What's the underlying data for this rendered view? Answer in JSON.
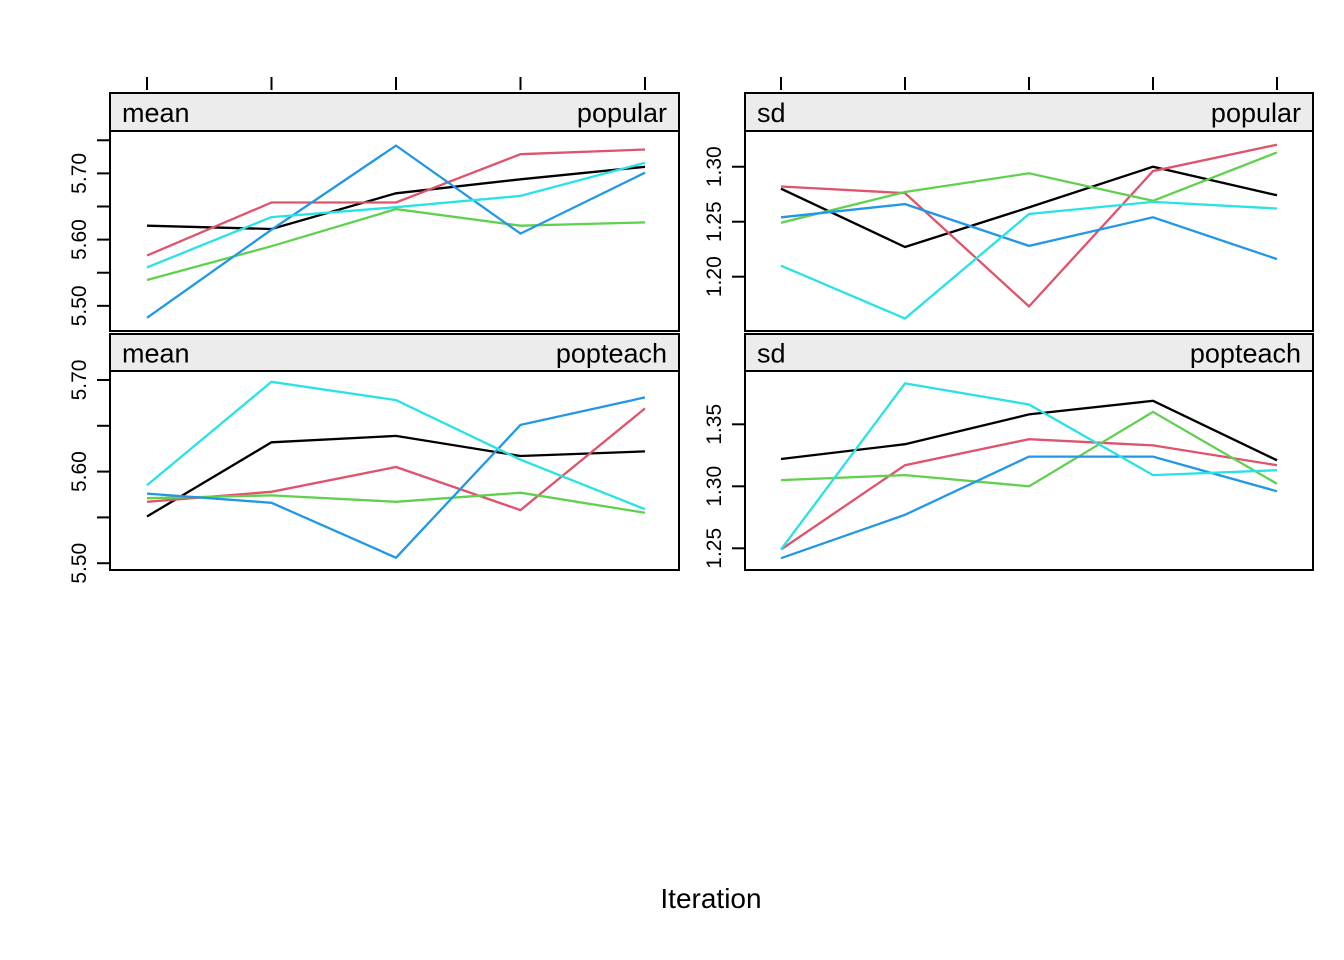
{
  "xlabel": "Iteration",
  "palette": {
    "black": "#000000",
    "red": "#DF536B",
    "green": "#61D04F",
    "blue": "#2297E6",
    "cyan": "#28E2E5"
  },
  "strip_bg": "#ECECEC",
  "chart_data": [
    {
      "type": "line",
      "strip_left": "mean",
      "strip_right": "popular",
      "x": [
        1,
        2,
        3,
        4,
        5
      ],
      "ylim": [
        5.462,
        5.764
      ],
      "yticks": [
        {
          "v": 5.5,
          "label": "5.50"
        },
        {
          "v": 5.6,
          "label": "5.60"
        },
        {
          "v": 5.7,
          "label": "5.70"
        }
      ],
      "yticks_minor": [
        5.55,
        5.65,
        5.75
      ],
      "series": [
        {
          "name": "black",
          "values": [
            5.621,
            5.616,
            5.67,
            5.691,
            5.71
          ]
        },
        {
          "name": "red",
          "values": [
            5.576,
            5.656,
            5.656,
            5.729,
            5.736
          ]
        },
        {
          "name": "green",
          "values": [
            5.539,
            5.59,
            5.646,
            5.621,
            5.626
          ]
        },
        {
          "name": "blue",
          "values": [
            5.482,
            5.615,
            5.742,
            5.609,
            5.701
          ]
        },
        {
          "name": "cyan",
          "values": [
            5.558,
            5.634,
            5.649,
            5.666,
            5.716
          ]
        }
      ]
    },
    {
      "type": "line",
      "strip_left": "sd",
      "strip_right": "popular",
      "x": [
        1,
        2,
        3,
        4,
        5
      ],
      "ylim": [
        1.1506,
        1.3325
      ],
      "yticks": [
        {
          "v": 1.2,
          "label": "1.20"
        },
        {
          "v": 1.25,
          "label": "1.25"
        },
        {
          "v": 1.3,
          "label": "1.30"
        }
      ],
      "yticks_minor": [],
      "series": [
        {
          "name": "black",
          "values": [
            1.28,
            1.227,
            1.263,
            1.3,
            1.274
          ]
        },
        {
          "name": "red",
          "values": [
            1.282,
            1.276,
            1.173,
            1.296,
            1.32
          ]
        },
        {
          "name": "green",
          "values": [
            1.249,
            1.277,
            1.294,
            1.269,
            1.313
          ]
        },
        {
          "name": "blue",
          "values": [
            1.254,
            1.266,
            1.228,
            1.254,
            1.216
          ]
        },
        {
          "name": "cyan",
          "values": [
            1.21,
            1.162,
            1.257,
            1.268,
            1.262
          ]
        }
      ]
    },
    {
      "type": "line",
      "strip_left": "mean",
      "strip_right": "popteach",
      "x": [
        1,
        2,
        3,
        4,
        5
      ],
      "ylim": [
        5.4926,
        5.7098
      ],
      "yticks": [
        {
          "v": 5.5,
          "label": "5.50"
        },
        {
          "v": 5.6,
          "label": "5.60"
        },
        {
          "v": 5.7,
          "label": "5.70"
        }
      ],
      "yticks_minor": [
        5.55,
        5.65
      ],
      "series": [
        {
          "name": "black",
          "values": [
            5.551,
            5.632,
            5.639,
            5.617,
            5.622
          ]
        },
        {
          "name": "red",
          "values": [
            5.567,
            5.578,
            5.605,
            5.558,
            5.669
          ]
        },
        {
          "name": "green",
          "values": [
            5.571,
            5.574,
            5.567,
            5.577,
            5.555
          ]
        },
        {
          "name": "blue",
          "values": [
            5.576,
            5.566,
            5.506,
            5.651,
            5.681
          ]
        },
        {
          "name": "cyan",
          "values": [
            5.585,
            5.698,
            5.678,
            5.613,
            5.559
          ]
        }
      ]
    },
    {
      "type": "line",
      "strip_left": "sd",
      "strip_right": "popteach",
      "x": [
        1,
        2,
        3,
        4,
        5
      ],
      "ylim": [
        1.2325,
        1.393
      ],
      "yticks": [
        {
          "v": 1.25,
          "label": "1.25"
        },
        {
          "v": 1.3,
          "label": "1.30"
        },
        {
          "v": 1.35,
          "label": "1.35"
        }
      ],
      "yticks_minor": [],
      "series": [
        {
          "name": "black",
          "values": [
            1.322,
            1.334,
            1.358,
            1.369,
            1.321
          ]
        },
        {
          "name": "red",
          "values": [
            1.249,
            1.317,
            1.338,
            1.333,
            1.317
          ]
        },
        {
          "name": "green",
          "values": [
            1.305,
            1.309,
            1.3,
            1.36,
            1.302
          ]
        },
        {
          "name": "blue",
          "values": [
            1.242,
            1.277,
            1.324,
            1.324,
            1.296
          ]
        },
        {
          "name": "cyan",
          "values": [
            1.249,
            1.383,
            1.366,
            1.309,
            1.313
          ]
        }
      ]
    }
  ]
}
